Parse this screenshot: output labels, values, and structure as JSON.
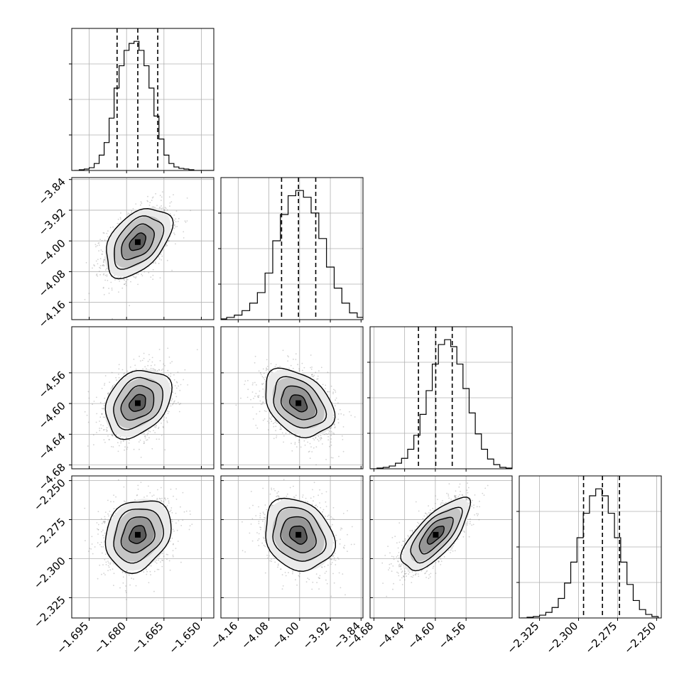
{
  "chart_data": {
    "type": "corner",
    "title": "",
    "parameters": [
      {
        "range": [
          -1.702,
          -1.645
        ],
        "ticks": [
          -1.695,
          -1.68,
          -1.665,
          -1.65
        ],
        "tick_labels": [
          "−1.695",
          "−1.680",
          "−1.665",
          "−1.650"
        ],
        "quantiles": [
          -1.6838,
          -1.6755,
          -1.6675
        ]
      },
      {
        "range": [
          -4.205,
          -3.835
        ],
        "ticks": [
          -4.16,
          -4.08,
          -4.0,
          -3.92,
          -3.84
        ],
        "tick_labels": [
          "−4.16",
          "−4.08",
          "−4.00",
          "−3.92",
          "−3.84"
        ],
        "quantiles": [
          -4.047,
          -4.003,
          -3.958
        ]
      },
      {
        "range": [
          -4.685,
          -4.5
        ],
        "ticks": [
          -4.68,
          -4.64,
          -4.6,
          -4.56
        ],
        "tick_labels": [
          "−4.68",
          "−4.64",
          "−4.60",
          "−4.56"
        ],
        "quantiles": [
          -4.622,
          -4.5995,
          -4.578
        ]
      },
      {
        "range": [
          -2.338,
          -2.247
        ],
        "ticks": [
          -2.325,
          -2.3,
          -2.275,
          -2.25
        ],
        "tick_labels": [
          "−2.325",
          "−2.300",
          "−2.275",
          "−2.250"
        ],
        "quantiles": [
          -2.2968,
          -2.2847,
          -2.2738
        ]
      }
    ],
    "histograms": [
      {
        "x": [
          -1.7,
          -1.698,
          -1.696,
          -1.694,
          -1.692,
          -1.69,
          -1.688,
          -1.686,
          -1.684,
          -1.682,
          -1.68,
          -1.678,
          -1.676,
          -1.674,
          -1.672,
          -1.67,
          -1.668,
          -1.666,
          -1.664,
          -1.662,
          -1.66,
          -1.658,
          -1.656,
          -1.654,
          -1.652,
          -1.65,
          -1.648,
          -1.646
        ],
        "values": [
          0,
          1,
          2,
          4,
          10,
          22,
          40,
          75,
          118,
          150,
          172,
          182,
          185,
          172,
          150,
          118,
          78,
          45,
          22,
          10,
          5,
          3,
          2,
          1,
          0,
          0,
          0,
          0
        ]
      },
      {
        "x": [
          -4.2,
          -4.18,
          -4.16,
          -4.14,
          -4.12,
          -4.1,
          -4.08,
          -4.06,
          -4.04,
          -4.02,
          -4.0,
          -3.98,
          -3.96,
          -3.94,
          -3.92,
          -3.9,
          -3.88,
          -3.86,
          -3.84
        ],
        "values": [
          1,
          3,
          6,
          12,
          22,
          36,
          62,
          105,
          140,
          165,
          172,
          163,
          142,
          108,
          70,
          42,
          22,
          9,
          3
        ]
      },
      {
        "x": [
          -4.68,
          -4.672,
          -4.664,
          -4.656,
          -4.648,
          -4.64,
          -4.632,
          -4.624,
          -4.616,
          -4.608,
          -4.6,
          -4.592,
          -4.584,
          -4.576,
          -4.568,
          -4.56,
          -4.552,
          -4.544,
          -4.536,
          -4.528,
          -4.52,
          -4.512,
          -4.504
        ],
        "values": [
          0,
          1,
          2,
          4,
          8,
          15,
          28,
          48,
          78,
          112,
          150,
          178,
          185,
          175,
          150,
          115,
          80,
          50,
          28,
          14,
          6,
          2,
          1
        ]
      },
      {
        "x": [
          -2.335,
          -2.331,
          -2.327,
          -2.323,
          -2.319,
          -2.315,
          -2.311,
          -2.307,
          -2.303,
          -2.299,
          -2.295,
          -2.291,
          -2.287,
          -2.283,
          -2.279,
          -2.275,
          -2.271,
          -2.267,
          -2.263,
          -2.259,
          -2.255,
          -2.251
        ],
        "values": [
          0,
          1,
          2,
          4,
          8,
          15,
          28,
          50,
          80,
          115,
          150,
          175,
          185,
          175,
          150,
          115,
          80,
          48,
          25,
          12,
          5,
          2
        ]
      }
    ],
    "pairs": [
      {
        "x_param": 0,
        "y_param": 1,
        "mean": [
          -1.6755,
          -4.003
        ],
        "sigma": [
          0.0066,
          0.045
        ],
        "correlation": 0.45
      },
      {
        "x_param": 0,
        "y_param": 2,
        "mean": [
          -1.6755,
          -4.5995
        ],
        "sigma": [
          0.0066,
          0.022
        ],
        "correlation": 0.3
      },
      {
        "x_param": 1,
        "y_param": 2,
        "mean": [
          -4.003,
          -4.5995
        ],
        "sigma": [
          0.045,
          0.022
        ],
        "correlation": -0.35
      },
      {
        "x_param": 0,
        "y_param": 3,
        "mean": [
          -1.6755,
          -2.2847
        ],
        "sigma": [
          0.0066,
          0.0115
        ],
        "correlation": 0.2
      },
      {
        "x_param": 1,
        "y_param": 3,
        "mean": [
          -4.003,
          -2.2847
        ],
        "sigma": [
          0.045,
          0.0115
        ],
        "correlation": -0.2
      },
      {
        "x_param": 2,
        "y_param": 3,
        "mean": [
          -4.5995,
          -2.2847
        ],
        "sigma": [
          0.022,
          0.0115
        ],
        "correlation": 0.72
      }
    ],
    "contour_levels_sigma": [
      0.5,
      1.0,
      1.5,
      2.0
    ],
    "grid": true,
    "colors": {
      "line": "#000000",
      "grid": "#b0b0b0",
      "scatter": "#7f7f7f",
      "density": "#000000"
    }
  }
}
